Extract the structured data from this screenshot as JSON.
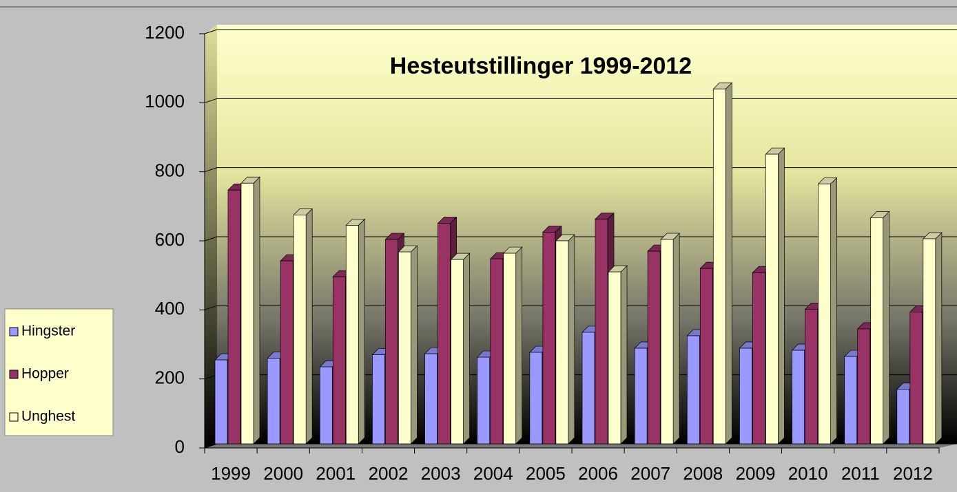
{
  "chart_data": {
    "type": "bar3d",
    "title": "Hesteutstillinger 1999-2012",
    "categories": [
      "1999",
      "2000",
      "2001",
      "2002",
      "2003",
      "2004",
      "2005",
      "2006",
      "2007",
      "2008",
      "2009",
      "2010",
      "2011",
      "2012"
    ],
    "series": [
      {
        "name": "Hingster",
        "color": "#9999ff",
        "values": [
          255,
          260,
          235,
          270,
          273,
          263,
          277,
          335,
          289,
          325,
          289,
          283,
          265,
          170
        ]
      },
      {
        "name": "Hopper",
        "color": "#993366",
        "values": [
          747,
          542,
          496,
          604,
          651,
          548,
          625,
          663,
          570,
          520,
          508,
          402,
          345,
          394
        ]
      },
      {
        "name": "Unghest",
        "color": "#ffffcc",
        "values": [
          767,
          675,
          645,
          568,
          546,
          564,
          600,
          510,
          604,
          1040,
          851,
          765,
          667,
          606
        ]
      }
    ],
    "ylim": [
      0,
      1200
    ],
    "yticks": [
      0,
      200,
      400,
      600,
      800,
      1000,
      1200
    ],
    "grid": true,
    "legend": "left"
  }
}
